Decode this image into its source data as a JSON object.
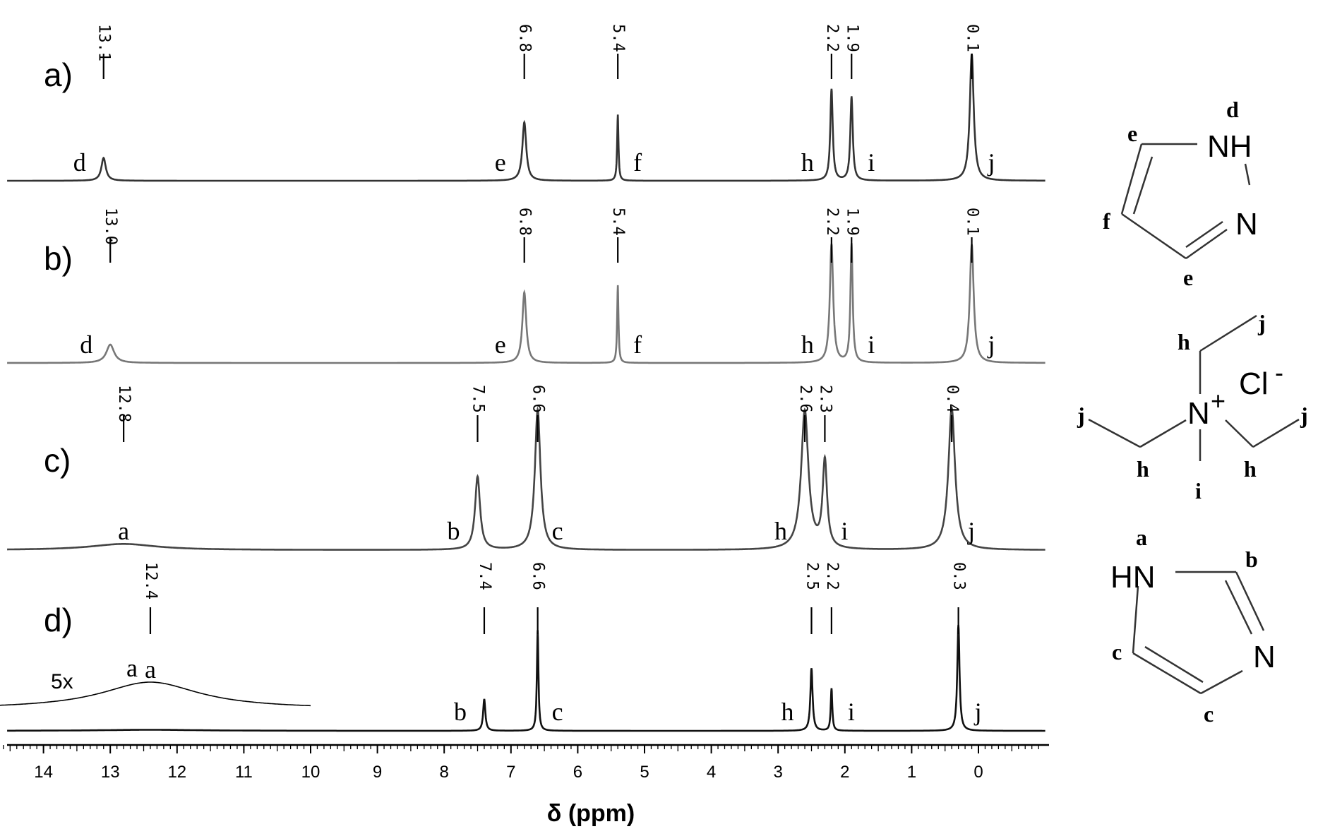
{
  "chart_data": {
    "type": "line",
    "xlabel": "δ (ppm)",
    "xlim": [
      14.7,
      -1.0
    ],
    "x_reversed": true,
    "x_ticks": [
      14,
      13,
      12,
      11,
      10,
      9,
      8,
      7,
      6,
      5,
      4,
      3,
      2,
      1,
      0
    ],
    "grid": false,
    "legend": "none",
    "spectra": [
      {
        "panel": "a)",
        "color": "#333333",
        "peaks": [
          {
            "shift": 13.1,
            "shift_label": "13.1",
            "letter": "d",
            "height": 0.18,
            "width": 0.04
          },
          {
            "shift": 6.8,
            "shift_label": "6.8",
            "letter": "e",
            "height": 0.46,
            "width": 0.035
          },
          {
            "shift": 5.4,
            "shift_label": "5.4",
            "letter": "f",
            "height": 0.52,
            "width": 0.012
          },
          {
            "shift": 2.2,
            "shift_label": "2.2",
            "letter": "h",
            "height": 0.72,
            "width": 0.022
          },
          {
            "shift": 1.9,
            "shift_label": "1.9",
            "letter": "i",
            "height": 0.66,
            "width": 0.022
          },
          {
            "shift": 0.1,
            "shift_label": "0.1",
            "letter": "j",
            "height": 1.0,
            "width": 0.035
          }
        ]
      },
      {
        "panel": "b)",
        "color": "#777777",
        "peaks": [
          {
            "shift": 13.0,
            "shift_label": "13.0",
            "letter": "d",
            "height": 0.13,
            "width": 0.07
          },
          {
            "shift": 6.8,
            "shift_label": "6.8",
            "letter": "e",
            "height": 0.5,
            "width": 0.035
          },
          {
            "shift": 5.4,
            "shift_label": "5.4",
            "letter": "f",
            "height": 0.55,
            "width": 0.012
          },
          {
            "shift": 2.2,
            "shift_label": "2.2",
            "letter": "h",
            "height": 0.84,
            "width": 0.03
          },
          {
            "shift": 1.9,
            "shift_label": "1.9",
            "letter": "i",
            "height": 0.84,
            "width": 0.02
          },
          {
            "shift": 0.1,
            "shift_label": "0.1",
            "letter": "j",
            "height": 0.84,
            "width": 0.035
          }
        ]
      },
      {
        "panel": "c)",
        "color": "#444444",
        "peaks": [
          {
            "shift": 12.8,
            "shift_label": "12.8",
            "letter": "a",
            "height": 0.04,
            "width": 0.6
          },
          {
            "shift": 7.5,
            "shift_label": "7.5",
            "letter": "b",
            "height": 0.48,
            "width": 0.045
          },
          {
            "shift": 6.6,
            "shift_label": "6.6",
            "letter": "c",
            "height": 0.92,
            "width": 0.05
          },
          {
            "shift": 2.6,
            "shift_label": "2.6",
            "letter": "h",
            "height": 0.91,
            "width": 0.065
          },
          {
            "shift": 2.3,
            "shift_label": "2.3",
            "letter": "i",
            "height": 0.57,
            "width": 0.04
          },
          {
            "shift": 0.4,
            "shift_label": "0.4",
            "letter": "j",
            "height": 0.93,
            "width": 0.06
          }
        ]
      },
      {
        "panel": "d)",
        "color": "#111111",
        "peaks": [
          {
            "shift": 12.4,
            "shift_label": "12.4",
            "letter": "a",
            "height": 0.01,
            "width": 0.9
          },
          {
            "shift": 7.4,
            "shift_label": "7.4",
            "letter": "b",
            "height": 0.3,
            "width": 0.02
          },
          {
            "shift": 6.6,
            "shift_label": "6.6",
            "letter": "c",
            "height": 0.95,
            "width": 0.014
          },
          {
            "shift": 2.5,
            "shift_label": "2.5",
            "letter": "h",
            "height": 0.59,
            "width": 0.02
          },
          {
            "shift": 2.2,
            "shift_label": "2.2",
            "letter": "i",
            "height": 0.4,
            "width": 0.014
          },
          {
            "shift": 0.3,
            "shift_label": "0.3",
            "letter": "j",
            "height": 1.0,
            "width": 0.02
          }
        ]
      }
    ],
    "inset": {
      "label": "5x",
      "letter": "a",
      "shift": 12.4,
      "xrange": [
        14.7,
        10.0
      ]
    }
  },
  "structures": {
    "pyrazole": {
      "atoms": [
        "NH",
        "N"
      ],
      "labels": [
        "d",
        "e",
        "f",
        "e"
      ]
    },
    "tetraethylammonium_chloride": {
      "atoms": [
        "N",
        "+",
        "Cl",
        "-"
      ],
      "labels": [
        "h",
        "j",
        "j",
        "h",
        "j",
        "h",
        "i"
      ]
    },
    "imidazole": {
      "atoms": [
        "HN",
        "N"
      ],
      "labels": [
        "a",
        "b",
        "c",
        "c"
      ]
    }
  }
}
